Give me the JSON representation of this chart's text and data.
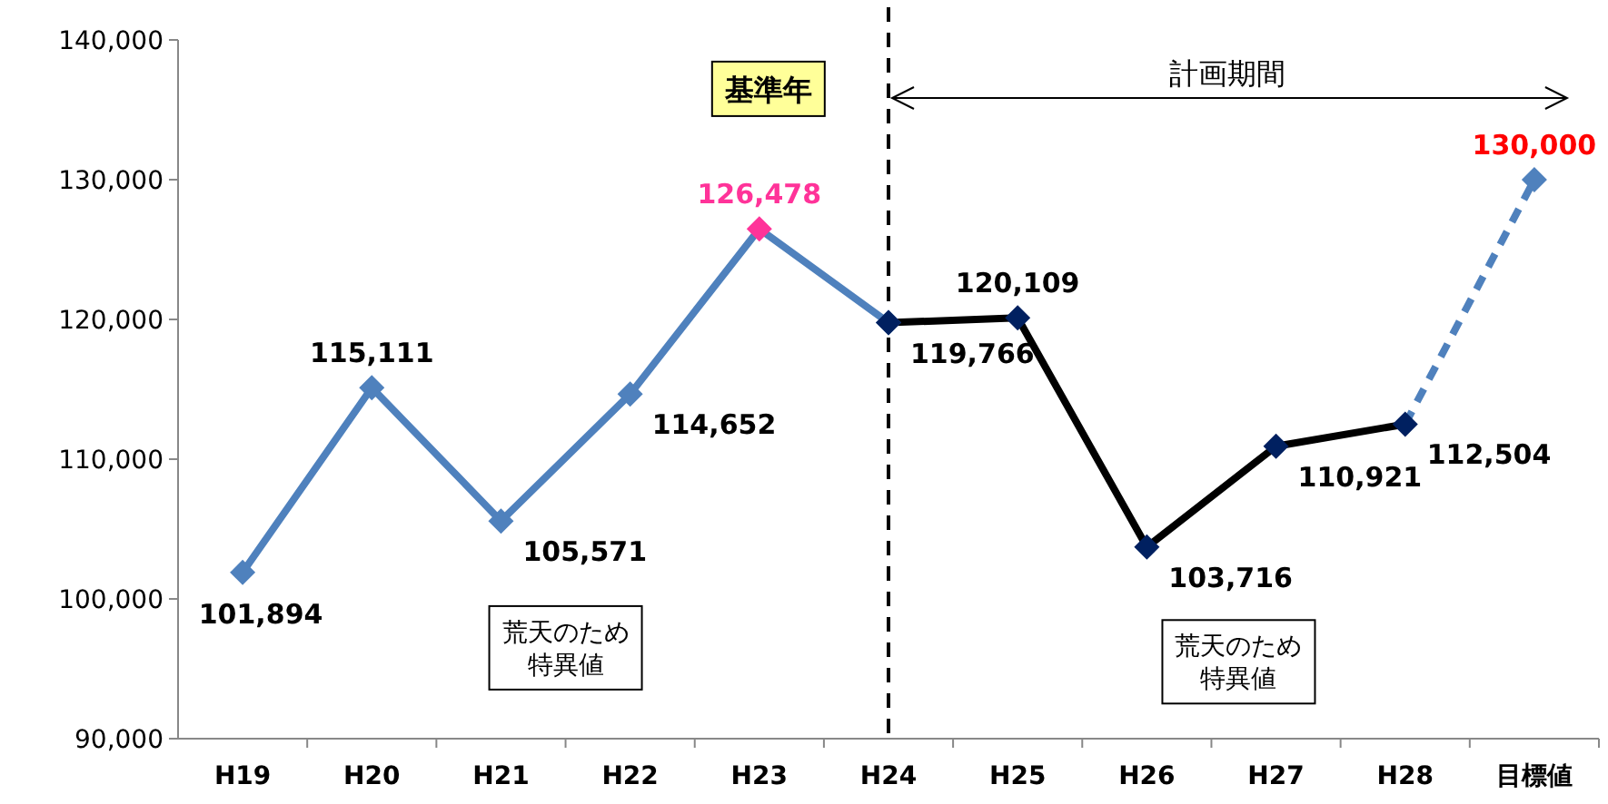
{
  "chart_data": {
    "type": "line",
    "categories": [
      "H19",
      "H20",
      "H21",
      "H22",
      "H23",
      "H24",
      "H25",
      "H26",
      "H27",
      "H28",
      "目標値"
    ],
    "ylim": [
      90000,
      140000
    ],
    "yticks": [
      {
        "value": 90000,
        "label": "90,000"
      },
      {
        "value": 100000,
        "label": "100,000"
      },
      {
        "value": 110000,
        "label": "110,000"
      },
      {
        "value": 120000,
        "label": "120,000"
      },
      {
        "value": 130000,
        "label": "130,000"
      },
      {
        "value": 140000,
        "label": "140,000"
      }
    ],
    "grid": false,
    "marker": "diamond",
    "ref_lines": [
      {
        "axis": "x",
        "value": "H24",
        "line_style": "dashed",
        "color": "#000000"
      }
    ],
    "annotations": [
      "基準年",
      "計画期間",
      "荒天のため",
      "特異値",
      "荒天のため",
      "特異値"
    ],
    "series": [
      {
        "color": "#4f81bd",
        "line_style": "solid",
        "values": [
          101894,
          115111,
          105571,
          114652,
          126478,
          119766,
          null,
          null,
          null,
          null,
          null
        ],
        "colors": [
          "#4f81bd",
          "#4f81bd",
          "#4f81bd",
          "#4f81bd",
          "#ff3399",
          "#4f81bd",
          null,
          null,
          null,
          null,
          null
        ],
        "value_labels": [
          "101,894",
          "115,111",
          "105,571",
          "114,652",
          "126,478",
          "119,766",
          null,
          null,
          null,
          null,
          null
        ]
      },
      {
        "color": "#4f81bd",
        "line_style": "dashed",
        "values": [
          null,
          null,
          null,
          null,
          null,
          null,
          null,
          null,
          null,
          112504,
          130000
        ],
        "colors": [
          null,
          null,
          null,
          null,
          null,
          null,
          null,
          null,
          null,
          "#002060",
          "#ff0000"
        ],
        "value_labels": [
          null,
          null,
          null,
          null,
          null,
          null,
          null,
          null,
          null,
          null,
          "130,000"
        ]
      },
      {
        "color": "#000000",
        "line_style": "solid",
        "values": [
          null,
          null,
          null,
          null,
          null,
          119766,
          120109,
          103716,
          110921,
          112504,
          null
        ],
        "colors": [
          null,
          null,
          null,
          null,
          null,
          "#002060",
          "#002060",
          "#002060",
          "#002060",
          "#002060",
          null
        ],
        "value_labels": [
          null,
          null,
          null,
          null,
          null,
          null,
          "120,109",
          "103,716",
          "110,921",
          "112,504",
          null
        ]
      }
    ]
  }
}
